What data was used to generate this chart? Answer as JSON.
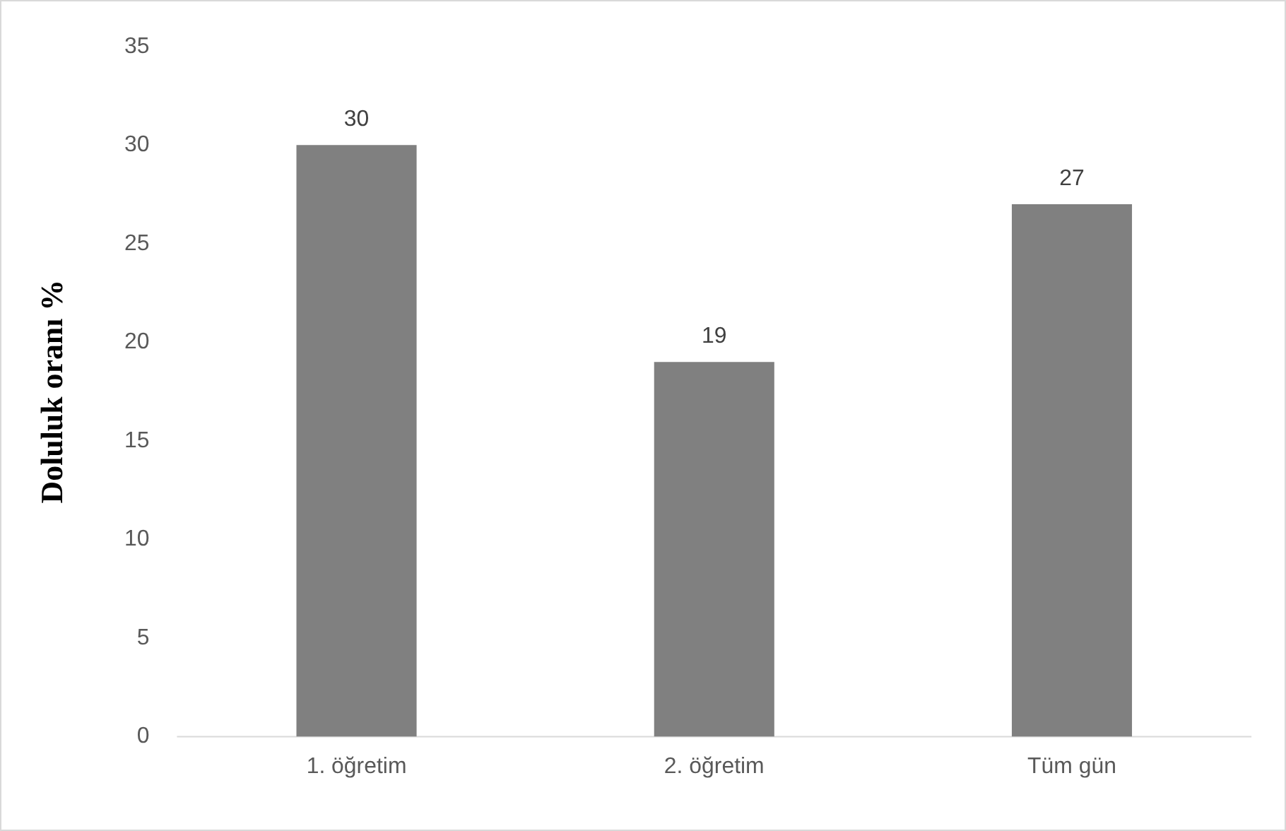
{
  "chart_data": {
    "type": "bar",
    "ylabel": "Doluluk oranı %",
    "categories": [
      "1. öğretim",
      "2. öğretim",
      "Tüm gün"
    ],
    "values": [
      30,
      19,
      27
    ],
    "color": "#808080",
    "ylim": [
      0,
      35
    ],
    "yticks": [
      0,
      5,
      10,
      15,
      20,
      25,
      30,
      35
    ],
    "grid": false,
    "legend": false,
    "data_labels": true
  }
}
